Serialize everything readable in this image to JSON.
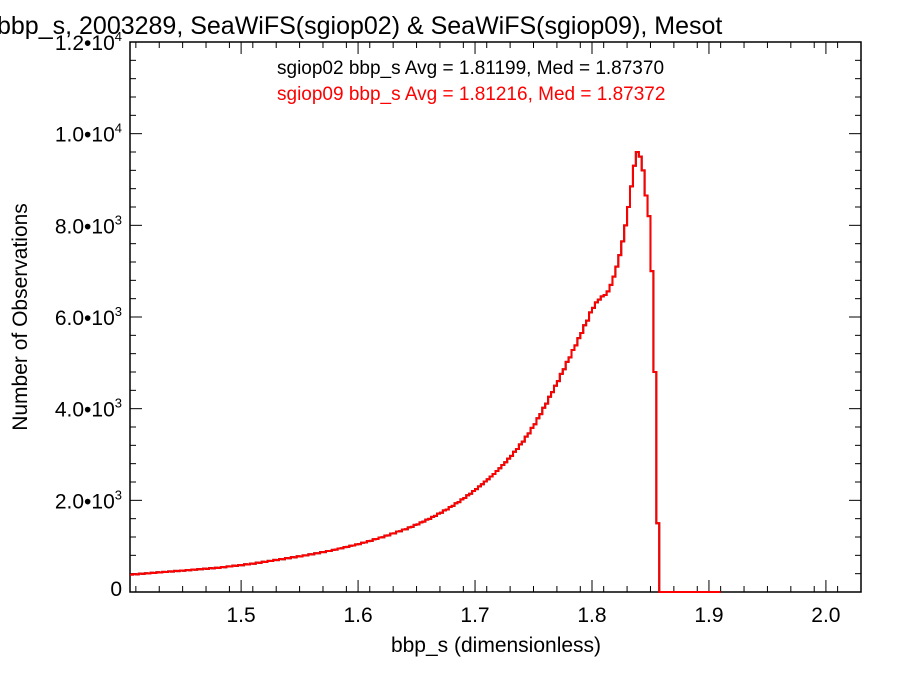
{
  "chart_data": {
    "type": "histogram",
    "title": "bbp_s, 2003289, SeaWiFS(sgiop02) & SeaWiFS(sgiop09), Mesot",
    "xlabel": "bbp_s (dimensionless)",
    "ylabel": "Number of Observations",
    "xlim": [
      1.405,
      2.03
    ],
    "ylim": [
      0,
      12000
    ],
    "x_ticks": [
      {
        "value": 1.5,
        "label": "1.5"
      },
      {
        "value": 1.6,
        "label": "1.6"
      },
      {
        "value": 1.7,
        "label": "1.7"
      },
      {
        "value": 1.8,
        "label": "1.8"
      },
      {
        "value": 1.9,
        "label": "1.9"
      },
      {
        "value": 2.0,
        "label": "2.0"
      }
    ],
    "y_ticks": [
      {
        "value": 0,
        "mant": "0",
        "exp": ""
      },
      {
        "value": 2000,
        "mant": "2.0•10",
        "exp": "3"
      },
      {
        "value": 4000,
        "mant": "4.0•10",
        "exp": "3"
      },
      {
        "value": 6000,
        "mant": "6.0•10",
        "exp": "3"
      },
      {
        "value": 8000,
        "mant": "8.0•10",
        "exp": "3"
      },
      {
        "value": 10000,
        "mant": "1.0•10",
        "exp": "4"
      },
      {
        "value": 12000,
        "mant": "1.2•10",
        "exp": "4"
      }
    ],
    "series": [
      {
        "name": "sgiop02",
        "color": "#000000",
        "legend_text": "sgiop02 bbp_s Avg = 1.81199, Med = 1.87370",
        "note": "drawn underneath; identical to sgiop09 so hidden"
      },
      {
        "name": "sgiop09",
        "color": "#ff0000",
        "legend_text": "sgiop09 bbp_s Avg = 1.81216, Med = 1.87372"
      }
    ],
    "bin_width": 0.0025,
    "bins_start": 1.405,
    "values": [
      380,
      390,
      385,
      400,
      395,
      410,
      405,
      420,
      415,
      430,
      425,
      440,
      435,
      450,
      445,
      460,
      455,
      470,
      465,
      480,
      475,
      490,
      485,
      500,
      495,
      510,
      505,
      520,
      515,
      530,
      525,
      545,
      540,
      560,
      555,
      575,
      570,
      590,
      585,
      605,
      600,
      620,
      615,
      640,
      635,
      660,
      655,
      680,
      675,
      700,
      695,
      720,
      715,
      740,
      735,
      760,
      755,
      780,
      775,
      800,
      800,
      825,
      820,
      845,
      845,
      870,
      870,
      895,
      895,
      920,
      925,
      950,
      955,
      980,
      985,
      1010,
      1015,
      1040,
      1045,
      1075,
      1080,
      1110,
      1115,
      1150,
      1155,
      1190,
      1195,
      1230,
      1235,
      1275,
      1280,
      1320,
      1325,
      1365,
      1370,
      1410,
      1420,
      1465,
      1475,
      1520,
      1535,
      1580,
      1595,
      1640,
      1660,
      1710,
      1730,
      1780,
      1800,
      1855,
      1880,
      1935,
      1960,
      2020,
      2050,
      2110,
      2145,
      2205,
      2245,
      2305,
      2350,
      2410,
      2460,
      2520,
      2575,
      2640,
      2700,
      2770,
      2830,
      2910,
      2970,
      3060,
      3120,
      3220,
      3280,
      3390,
      3460,
      3580,
      3660,
      3790,
      3880,
      4020,
      4110,
      4260,
      4360,
      4500,
      4600,
      4760,
      4860,
      5020,
      5120,
      5280,
      5380,
      5540,
      5650,
      5820,
      5920,
      6100,
      6200,
      6320,
      6380,
      6450,
      6480,
      6560,
      6700,
      6880,
      7100,
      7350,
      7650,
      8000,
      8400,
      8850,
      9300,
      9600,
      9500,
      9200,
      8650,
      8200,
      7000,
      4800,
      1500,
      0,
      0,
      0,
      0,
      0,
      0,
      0,
      0,
      0,
      0,
      0,
      0,
      0,
      0,
      0,
      0,
      0,
      0,
      0,
      0,
      0
    ]
  }
}
